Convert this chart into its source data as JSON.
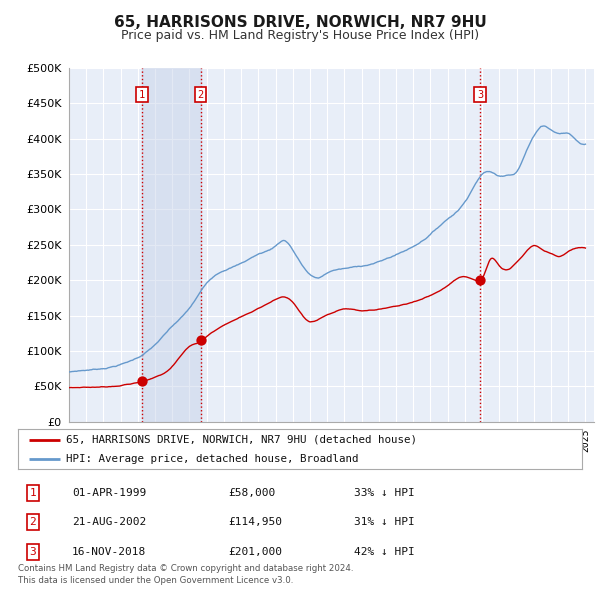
{
  "title": "65, HARRISONS DRIVE, NORWICH, NR7 9HU",
  "subtitle": "Price paid vs. HM Land Registry's House Price Index (HPI)",
  "title_fontsize": 11,
  "subtitle_fontsize": 9,
  "background_color": "#ffffff",
  "plot_bg_color": "#e8eef8",
  "grid_color": "#ffffff",
  "ylim": [
    0,
    500000
  ],
  "yticks": [
    0,
    50000,
    100000,
    150000,
    200000,
    250000,
    300000,
    350000,
    400000,
    450000,
    500000
  ],
  "ytick_labels": [
    "£0",
    "£50K",
    "£100K",
    "£150K",
    "£200K",
    "£250K",
    "£300K",
    "£350K",
    "£400K",
    "£450K",
    "£500K"
  ],
  "red_line_color": "#cc0000",
  "blue_line_color": "#6699cc",
  "sale_color": "#cc0000",
  "purchases": [
    {
      "label": "1",
      "date_num": 1999.25,
      "price": 58000
    },
    {
      "label": "2",
      "date_num": 2002.64,
      "price": 114950
    },
    {
      "label": "3",
      "date_num": 2018.88,
      "price": 201000
    }
  ],
  "vline_color": "#cc0000",
  "shade_color": "#c8d4ea",
  "shade_alpha": 0.5,
  "legend_label_red": "65, HARRISONS DRIVE, NORWICH, NR7 9HU (detached house)",
  "legend_label_blue": "HPI: Average price, detached house, Broadland",
  "table_rows": [
    {
      "num": "1",
      "date": "01-APR-1999",
      "price": "£58,000",
      "hpi": "33% ↓ HPI"
    },
    {
      "num": "2",
      "date": "21-AUG-2002",
      "price": "£114,950",
      "hpi": "31% ↓ HPI"
    },
    {
      "num": "3",
      "date": "16-NOV-2018",
      "price": "£201,000",
      "hpi": "42% ↓ HPI"
    }
  ],
  "footer": "Contains HM Land Registry data © Crown copyright and database right 2024.\nThis data is licensed under the Open Government Licence v3.0."
}
